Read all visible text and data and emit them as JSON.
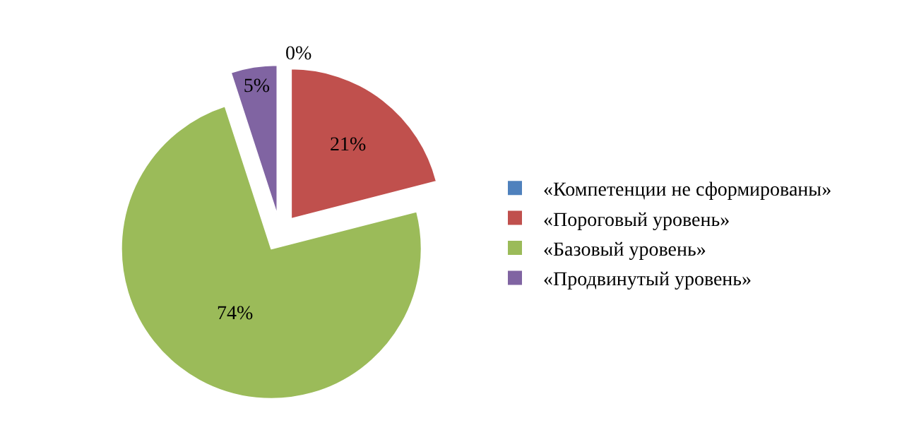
{
  "chart_data": {
    "type": "pie",
    "categories": [
      "«Компетенции не сформированы»",
      "«Пороговый уровень»",
      "«Базовый уровень»",
      "«Продвинутый уровень»"
    ],
    "values": [
      0,
      21,
      74,
      5
    ],
    "colors": [
      "#4f81bd",
      "#c0504d",
      "#9bbb59",
      "#8064a2"
    ],
    "value_labels": [
      "0%",
      "21%",
      "74%",
      "5%"
    ],
    "legend": "right"
  }
}
